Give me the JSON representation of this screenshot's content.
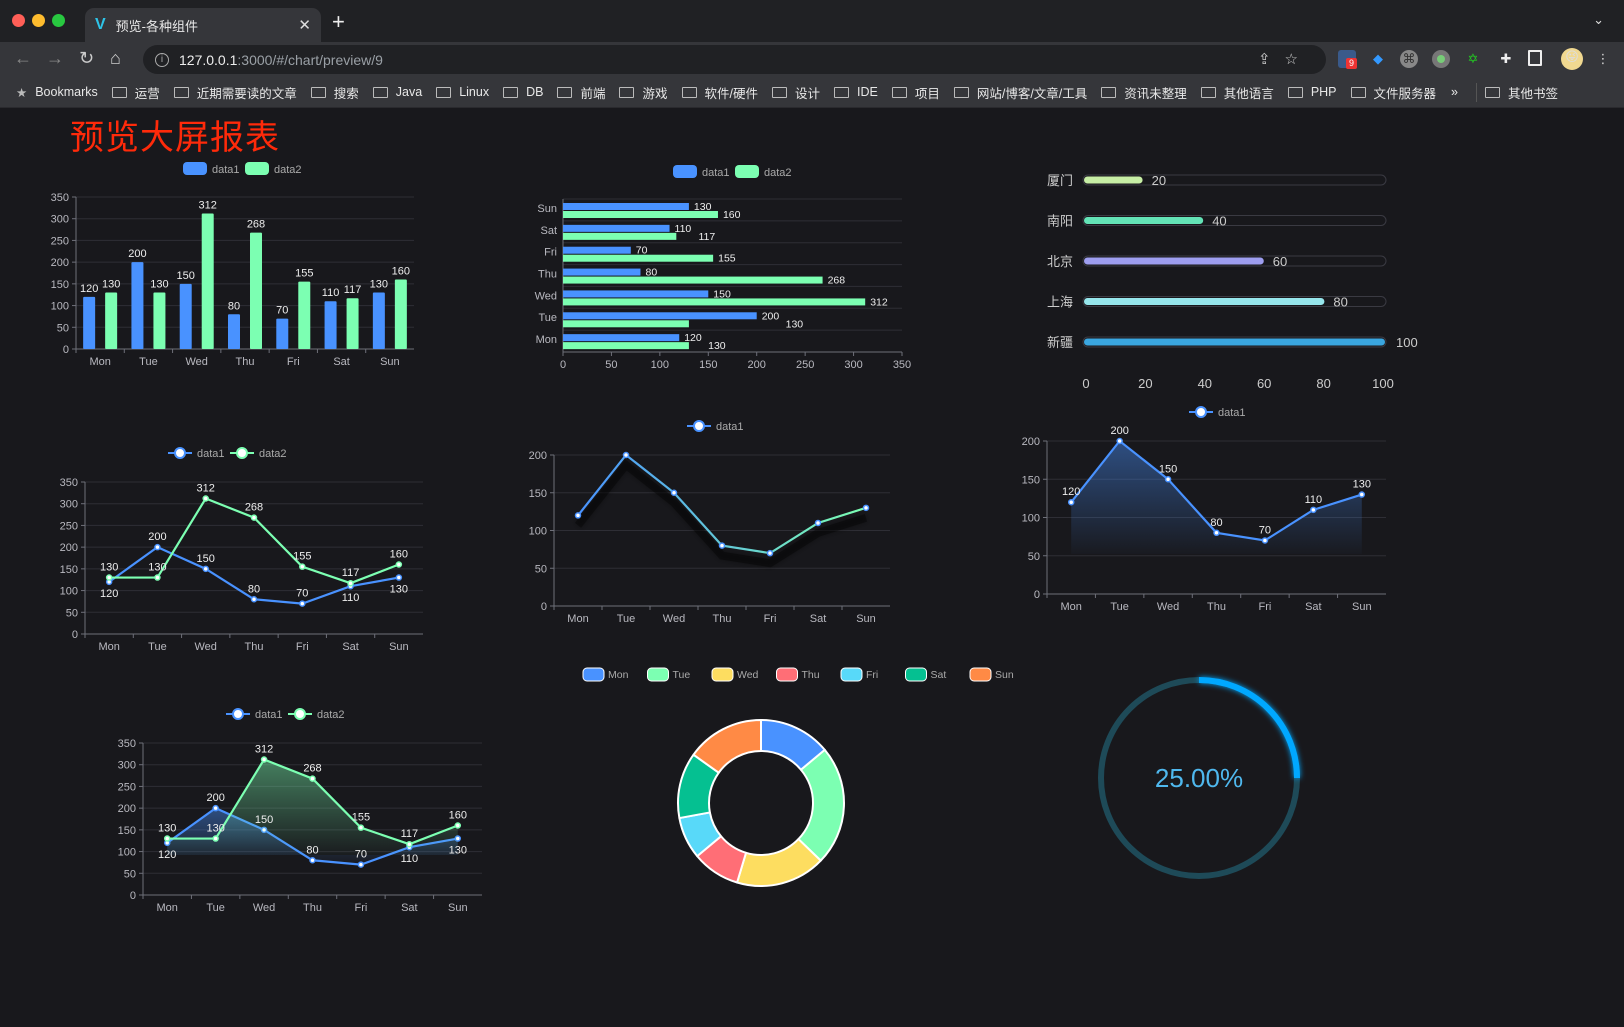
{
  "browser": {
    "tab_title": "预览-各种组件",
    "url_host": "127.0.0.1",
    "url_path": ":3000/#/chart/preview/9",
    "extension_badge": "9",
    "bookmarks_label": "Bookmarks",
    "bookmarks": [
      "运营",
      "近期需要读的文章",
      "搜索",
      "Java",
      "Linux",
      "DB",
      "前端",
      "游戏",
      "软件/硬件",
      "设计",
      "IDE",
      "项目",
      "网站/博客/文章/工具",
      "资讯未整理",
      "其他语言",
      "PHP",
      "文件服务器"
    ],
    "overflow": "»",
    "other_bookmarks": "其他书签"
  },
  "page": {
    "title": "预览大屏报表",
    "title_color": "#ff2a0a"
  },
  "colors": {
    "data1": "#4992ff",
    "data2": "#7cffb2"
  },
  "chart_data": [
    {
      "type": "bar",
      "legend": [
        "data1",
        "data2"
      ],
      "legend_position": "top",
      "categories": [
        "Mon",
        "Tue",
        "Wed",
        "Thu",
        "Fri",
        "Sat",
        "Sun"
      ],
      "series": [
        {
          "name": "data1",
          "values": [
            120,
            200,
            150,
            80,
            70,
            110,
            130
          ]
        },
        {
          "name": "data2",
          "values": [
            130,
            130,
            312,
            268,
            155,
            117,
            160
          ]
        }
      ],
      "ylim": [
        0,
        350
      ],
      "yticks": [
        "0",
        "50",
        "100",
        "150",
        "200",
        "250",
        "300",
        "350"
      ],
      "grid": true,
      "data_labels": true
    },
    {
      "type": "bar",
      "orientation": "horizontal",
      "legend": [
        "data1",
        "data2"
      ],
      "legend_position": "top",
      "categories": [
        "Mon",
        "Tue",
        "Wed",
        "Thu",
        "Fri",
        "Sat",
        "Sun"
      ],
      "series": [
        {
          "name": "data1",
          "values": [
            120,
            200,
            150,
            80,
            70,
            110,
            130
          ]
        },
        {
          "name": "data2",
          "values": [
            130,
            130,
            312,
            268,
            155,
            117,
            160
          ]
        }
      ],
      "xlim": [
        0,
        350
      ],
      "xticks": [
        "0",
        "50",
        "100",
        "150",
        "200",
        "250",
        "300",
        "350"
      ],
      "grid": true,
      "data_labels": true
    },
    {
      "type": "bar",
      "orientation": "horizontal",
      "style": "progress",
      "categories": [
        "厦门",
        "南阳",
        "北京",
        "上海",
        "新疆"
      ],
      "values": [
        20,
        40,
        60,
        80,
        100
      ],
      "colors": [
        "#c7eea5",
        "#63e3b6",
        "#9e9ef0",
        "#96e6ec",
        "#3aa6e0"
      ],
      "xlim": [
        0,
        100
      ],
      "xticks": [
        "0",
        "20",
        "40",
        "60",
        "80",
        "100"
      ],
      "data_labels": true
    },
    {
      "type": "line",
      "legend": [
        "data1",
        "data2"
      ],
      "legend_position": "top",
      "categories": [
        "Mon",
        "Tue",
        "Wed",
        "Thu",
        "Fri",
        "Sat",
        "Sun"
      ],
      "series": [
        {
          "name": "data1",
          "values": [
            120,
            200,
            150,
            80,
            70,
            110,
            130
          ]
        },
        {
          "name": "data2",
          "values": [
            130,
            130,
            312,
            268,
            155,
            117,
            160
          ]
        }
      ],
      "ylim": [
        0,
        350
      ],
      "yticks": [
        "0",
        "50",
        "100",
        "150",
        "200",
        "250",
        "300",
        "350"
      ],
      "grid": true,
      "data_labels": true
    },
    {
      "type": "line",
      "legend": [
        "data1"
      ],
      "legend_position": "top",
      "categories": [
        "Mon",
        "Tue",
        "Wed",
        "Thu",
        "Fri",
        "Sat",
        "Sun"
      ],
      "series": [
        {
          "name": "data1",
          "values": [
            120,
            200,
            150,
            80,
            70,
            110,
            130
          ]
        }
      ],
      "line_gradient": [
        "#4992ff",
        "#7cffb2"
      ],
      "ylim": [
        0,
        200
      ],
      "yticks": [
        "0",
        "50",
        "100",
        "150",
        "200"
      ],
      "grid": true,
      "data_labels": false
    },
    {
      "type": "area",
      "legend": [
        "data1"
      ],
      "legend_position": "top",
      "categories": [
        "Mon",
        "Tue",
        "Wed",
        "Thu",
        "Fri",
        "Sat",
        "Sun"
      ],
      "series": [
        {
          "name": "data1",
          "values": [
            120,
            200,
            150,
            80,
            70,
            110,
            130
          ]
        }
      ],
      "ylim": [
        0,
        200
      ],
      "yticks": [
        "0",
        "50",
        "100",
        "150",
        "200"
      ],
      "grid": true,
      "data_labels": true
    },
    {
      "type": "area",
      "legend": [
        "data1",
        "data2"
      ],
      "legend_position": "top",
      "categories": [
        "Mon",
        "Tue",
        "Wed",
        "Thu",
        "Fri",
        "Sat",
        "Sun"
      ],
      "series": [
        {
          "name": "data1",
          "values": [
            120,
            200,
            150,
            80,
            70,
            110,
            130
          ]
        },
        {
          "name": "data2",
          "values": [
            130,
            130,
            312,
            268,
            155,
            117,
            160
          ]
        }
      ],
      "ylim": [
        0,
        350
      ],
      "yticks": [
        "0",
        "50",
        "100",
        "150",
        "200",
        "250",
        "300",
        "350"
      ],
      "grid": true,
      "data_labels": true
    },
    {
      "type": "pie",
      "style": "donut",
      "legend_position": "top",
      "categories": [
        "Mon",
        "Tue",
        "Wed",
        "Thu",
        "Fri",
        "Sat",
        "Sun"
      ],
      "values": [
        120,
        200,
        150,
        80,
        70,
        110,
        130
      ],
      "colors": [
        "#4992ff",
        "#7cffb2",
        "#fddd60",
        "#ff6e76",
        "#58d9f9",
        "#05c091",
        "#ff8a45"
      ]
    },
    {
      "type": "gauge",
      "value": 25,
      "max": 100,
      "label": "25.00%",
      "color": "#00a8ff",
      "track_color": "#1e4a58"
    }
  ]
}
